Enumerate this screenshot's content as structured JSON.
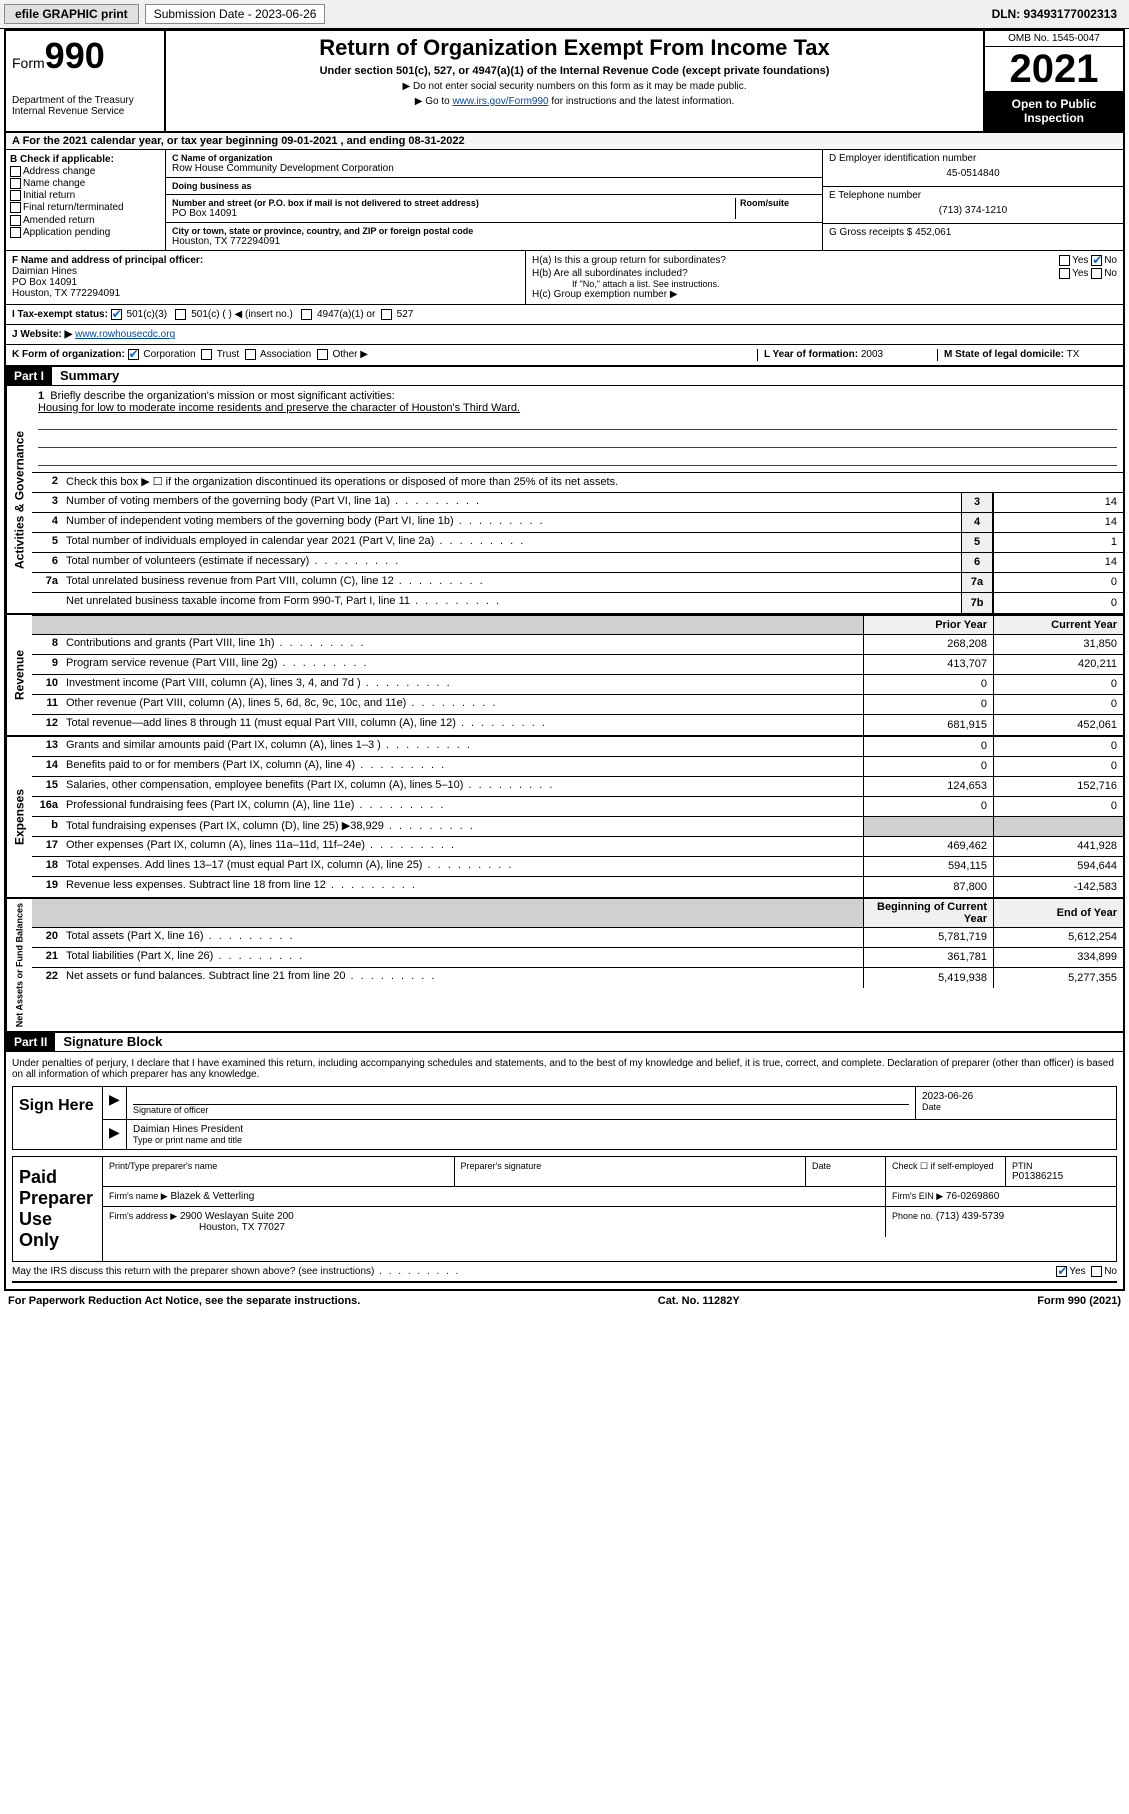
{
  "topbar": {
    "efile": "efile GRAPHIC print",
    "submission_label": "Submission Date - 2023-06-26",
    "dln": "DLN: 93493177002313"
  },
  "header": {
    "form_prefix": "Form",
    "form_number": "990",
    "dept": "Department of the Treasury",
    "irs": "Internal Revenue Service",
    "title": "Return of Organization Exempt From Income Tax",
    "subtitle": "Under section 501(c), 527, or 4947(a)(1) of the Internal Revenue Code (except private foundations)",
    "note1": "▶ Do not enter social security numbers on this form as it may be made public.",
    "note2_pre": "▶ Go to ",
    "note2_link": "www.irs.gov/Form990",
    "note2_post": " for instructions and the latest information.",
    "omb": "OMB No. 1545-0047",
    "year": "2021",
    "inspect": "Open to Public Inspection"
  },
  "period": {
    "text": "A For the 2021 calendar year, or tax year beginning 09-01-2021   , and ending 08-31-2022"
  },
  "section_b": {
    "title": "B Check if applicable:",
    "opts": [
      "Address change",
      "Name change",
      "Initial return",
      "Final return/terminated",
      "Amended return",
      "Application pending"
    ]
  },
  "section_c": {
    "name_label": "C Name of organization",
    "name": "Row House Community Development Corporation",
    "dba_label": "Doing business as",
    "dba": "",
    "street_label": "Number and street (or P.O. box if mail is not delivered to street address)",
    "room_label": "Room/suite",
    "street": "PO Box 14091",
    "city_label": "City or town, state or province, country, and ZIP or foreign postal code",
    "city": "Houston, TX  772294091"
  },
  "section_d": {
    "ein_label": "D Employer identification number",
    "ein": "45-0514840",
    "phone_label": "E Telephone number",
    "phone": "(713) 374-1210",
    "gross_label": "G Gross receipts $",
    "gross": "452,061"
  },
  "section_f": {
    "label": "F Name and address of principal officer:",
    "name": "Daimian Hines",
    "addr1": "PO Box 14091",
    "addr2": "Houston, TX  772294091"
  },
  "section_h": {
    "ha": "H(a)  Is this a group return for subordinates?",
    "hb": "H(b)  Are all subordinates included?",
    "hb_note": "If \"No,\" attach a list. See instructions.",
    "hc": "H(c)  Group exemption number ▶",
    "yes": "Yes",
    "no": "No"
  },
  "section_i": {
    "label": "I   Tax-exempt status:",
    "opt1": "501(c)(3)",
    "opt2": "501(c) (   ) ◀ (insert no.)",
    "opt3": "4947(a)(1) or",
    "opt4": "527"
  },
  "section_j": {
    "label": "J   Website: ▶",
    "value": "www.rowhousecdc.org"
  },
  "section_k": {
    "label": "K Form of organization:",
    "opts": [
      "Corporation",
      "Trust",
      "Association",
      "Other ▶"
    ],
    "l_label": "L Year of formation:",
    "l_val": "2003",
    "m_label": "M State of legal domicile:",
    "m_val": "TX"
  },
  "part1": {
    "header": "Part I",
    "title": "Summary",
    "line1_label": "Briefly describe the organization's mission or most significant activities:",
    "line1_text": "Housing for low to moderate income residents and preserve the character of Houston's Third Ward.",
    "line2": "Check this box ▶ ☐  if the organization discontinued its operations or disposed of more than 25% of its net assets.",
    "side_ag": "Activities & Governance",
    "side_rev": "Revenue",
    "side_exp": "Expenses",
    "side_net": "Net Assets or Fund Balances",
    "col_prior": "Prior Year",
    "col_current": "Current Year",
    "col_begin": "Beginning of Current Year",
    "col_end": "End of Year",
    "lines_ag": [
      {
        "n": "3",
        "d": "Number of voting members of the governing body (Part VI, line 1a)",
        "box": "3",
        "v": "14"
      },
      {
        "n": "4",
        "d": "Number of independent voting members of the governing body (Part VI, line 1b)",
        "box": "4",
        "v": "14"
      },
      {
        "n": "5",
        "d": "Total number of individuals employed in calendar year 2021 (Part V, line 2a)",
        "box": "5",
        "v": "1"
      },
      {
        "n": "6",
        "d": "Total number of volunteers (estimate if necessary)",
        "box": "6",
        "v": "14"
      },
      {
        "n": "7a",
        "d": "Total unrelated business revenue from Part VIII, column (C), line 12",
        "box": "7a",
        "v": "0"
      },
      {
        "n": "",
        "d": "Net unrelated business taxable income from Form 990-T, Part I, line 11",
        "box": "7b",
        "v": "0"
      }
    ],
    "lines_rev": [
      {
        "n": "8",
        "d": "Contributions and grants (Part VIII, line 1h)",
        "p": "268,208",
        "c": "31,850"
      },
      {
        "n": "9",
        "d": "Program service revenue (Part VIII, line 2g)",
        "p": "413,707",
        "c": "420,211"
      },
      {
        "n": "10",
        "d": "Investment income (Part VIII, column (A), lines 3, 4, and 7d )",
        "p": "0",
        "c": "0"
      },
      {
        "n": "11",
        "d": "Other revenue (Part VIII, column (A), lines 5, 6d, 8c, 9c, 10c, and 11e)",
        "p": "0",
        "c": "0"
      },
      {
        "n": "12",
        "d": "Total revenue—add lines 8 through 11 (must equal Part VIII, column (A), line 12)",
        "p": "681,915",
        "c": "452,061"
      }
    ],
    "lines_exp": [
      {
        "n": "13",
        "d": "Grants and similar amounts paid (Part IX, column (A), lines 1–3 )",
        "p": "0",
        "c": "0"
      },
      {
        "n": "14",
        "d": "Benefits paid to or for members (Part IX, column (A), line 4)",
        "p": "0",
        "c": "0"
      },
      {
        "n": "15",
        "d": "Salaries, other compensation, employee benefits (Part IX, column (A), lines 5–10)",
        "p": "124,653",
        "c": "152,716"
      },
      {
        "n": "16a",
        "d": "Professional fundraising fees (Part IX, column (A), line 11e)",
        "p": "0",
        "c": "0"
      },
      {
        "n": "b",
        "d": "Total fundraising expenses (Part IX, column (D), line 25) ▶38,929",
        "p": "",
        "c": "",
        "gray": true
      },
      {
        "n": "17",
        "d": "Other expenses (Part IX, column (A), lines 11a–11d, 11f–24e)",
        "p": "469,462",
        "c": "441,928"
      },
      {
        "n": "18",
        "d": "Total expenses. Add lines 13–17 (must equal Part IX, column (A), line 25)",
        "p": "594,115",
        "c": "594,644"
      },
      {
        "n": "19",
        "d": "Revenue less expenses. Subtract line 18 from line 12",
        "p": "87,800",
        "c": "-142,583"
      }
    ],
    "lines_net": [
      {
        "n": "20",
        "d": "Total assets (Part X, line 16)",
        "p": "5,781,719",
        "c": "5,612,254"
      },
      {
        "n": "21",
        "d": "Total liabilities (Part X, line 26)",
        "p": "361,781",
        "c": "334,899"
      },
      {
        "n": "22",
        "d": "Net assets or fund balances. Subtract line 21 from line 20",
        "p": "5,419,938",
        "c": "5,277,355"
      }
    ]
  },
  "part2": {
    "header": "Part II",
    "title": "Signature Block",
    "penalty": "Under penalties of perjury, I declare that I have examined this return, including accompanying schedules and statements, and to the best of my knowledge and belief, it is true, correct, and complete. Declaration of preparer (other than officer) is based on all information of which preparer has any knowledge.",
    "sign_here": "Sign Here",
    "sig_officer": "Signature of officer",
    "sig_date": "2023-06-26",
    "date_label": "Date",
    "officer_name": "Daimian Hines  President",
    "type_name": "Type or print name and title",
    "paid": "Paid Preparer Use Only",
    "prep_name_label": "Print/Type preparer's name",
    "prep_sig_label": "Preparer's signature",
    "check_self": "Check ☐ if self-employed",
    "ptin_label": "PTIN",
    "ptin": "P01386215",
    "firm_name_label": "Firm's name    ▶",
    "firm_name": "Blazek & Vetterling",
    "firm_ein_label": "Firm's EIN ▶",
    "firm_ein": "76-0269860",
    "firm_addr_label": "Firm's address ▶",
    "firm_addr": "2900 Weslayan Suite 200",
    "firm_city": "Houston, TX  77027",
    "firm_phone_label": "Phone no.",
    "firm_phone": "(713) 439-5739",
    "discuss": "May the IRS discuss this return with the preparer shown above? (see instructions)",
    "yes": "Yes",
    "no": "No"
  },
  "footer": {
    "pra": "For Paperwork Reduction Act Notice, see the separate instructions.",
    "cat": "Cat. No. 11282Y",
    "form": "Form 990 (2021)"
  }
}
